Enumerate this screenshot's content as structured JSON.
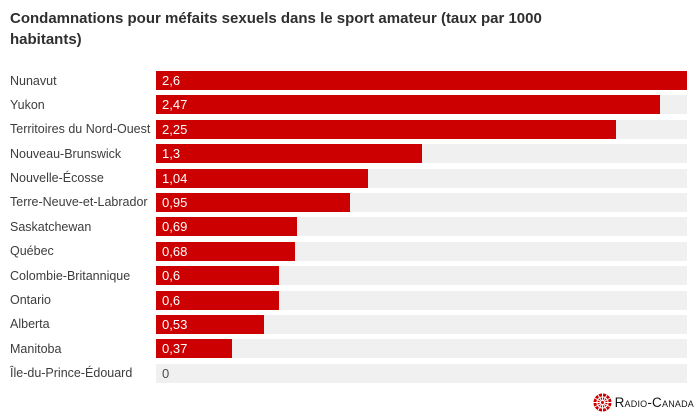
{
  "title": "Condamnations pour méfaits sexuels dans le sport amateur (taux par 1000\nhabitants)",
  "chart_data": {
    "type": "bar",
    "orientation": "horizontal",
    "title": "Condamnations pour méfaits sexuels dans le sport amateur (taux par 1000\nhabitants)",
    "categories": [
      "Nunavut",
      "Yukon",
      "Territoires du Nord-Ouest",
      "Nouveau-Brunswick",
      "Nouvelle-Écosse",
      "Terre-Neuve-et-Labrador",
      "Saskatchewan",
      "Québec",
      "Colombie-Britannique",
      "Ontario",
      "Alberta",
      "Manitoba",
      "Île-du-Prince-Édouard"
    ],
    "values": [
      2.6,
      2.47,
      2.25,
      1.3,
      1.04,
      0.95,
      0.69,
      0.68,
      0.6,
      0.6,
      0.53,
      0.37,
      0
    ],
    "value_labels": [
      "2,6",
      "2,47",
      "2,25",
      "1,3",
      "1,04",
      "0,95",
      "0,69",
      "0,68",
      "0,6",
      "0,6",
      "0,53",
      "0,37",
      "0"
    ],
    "xlabel": "",
    "ylabel": "",
    "xlim": [
      0,
      2.6
    ],
    "grid": false,
    "legend": false,
    "bar_color": "#cc0000",
    "track_color": "#f0f0f0",
    "value_label_color": "#ffffff",
    "zero_value_label_color": "#4d4d4d"
  },
  "logo": {
    "text": "Radio-Canada",
    "icon": "radio-canada-gem-icon",
    "icon_color": "#cc0000",
    "text_color": "#161616"
  }
}
